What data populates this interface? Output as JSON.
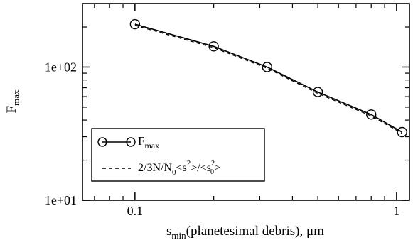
{
  "chart_data": {
    "type": "line",
    "scale": {
      "x": "log",
      "y": "log"
    },
    "xlim": [
      0.063,
      1.12
    ],
    "ylim": [
      10,
      300
    ],
    "grid": false,
    "x_ticks": [
      {
        "value": 0.1,
        "label": "0.1"
      },
      {
        "value": 1,
        "label": "1"
      }
    ],
    "y_ticks": [
      {
        "value": 10,
        "label": "1e+01"
      },
      {
        "value": 100,
        "label": "1e+02"
      }
    ],
    "xlabel": {
      "main": "s",
      "sub": "min",
      "rest": "(planetesimal debris), μm"
    },
    "ylabel": {
      "main": "F",
      "sub": "max"
    },
    "legend_position": "lower-left",
    "series": [
      {
        "name": "F_max",
        "legend": {
          "main": "F",
          "sub": "max"
        },
        "style": "solid-circle-markers",
        "color": "#000000",
        "x": [
          0.1,
          0.2,
          0.32,
          0.5,
          0.8,
          1.05
        ],
        "y": [
          210,
          143,
          100,
          65,
          44,
          32.5
        ]
      },
      {
        "name": "2/3N/N_0<s^2>/<s_0^2>",
        "legend": {
          "text": "2/3N/N",
          "sub0": "0",
          "mid": "<s",
          "sup1": "2",
          "mid2": ">/<s",
          "sup2": "2",
          "sub2": "0",
          "end": ">"
        },
        "style": "dashed",
        "color": "#000000",
        "x": [
          0.1,
          0.2,
          0.32,
          0.5,
          0.8,
          1.05
        ],
        "y": [
          206,
          140,
          98,
          63.5,
          43,
          31.8
        ]
      }
    ]
  }
}
